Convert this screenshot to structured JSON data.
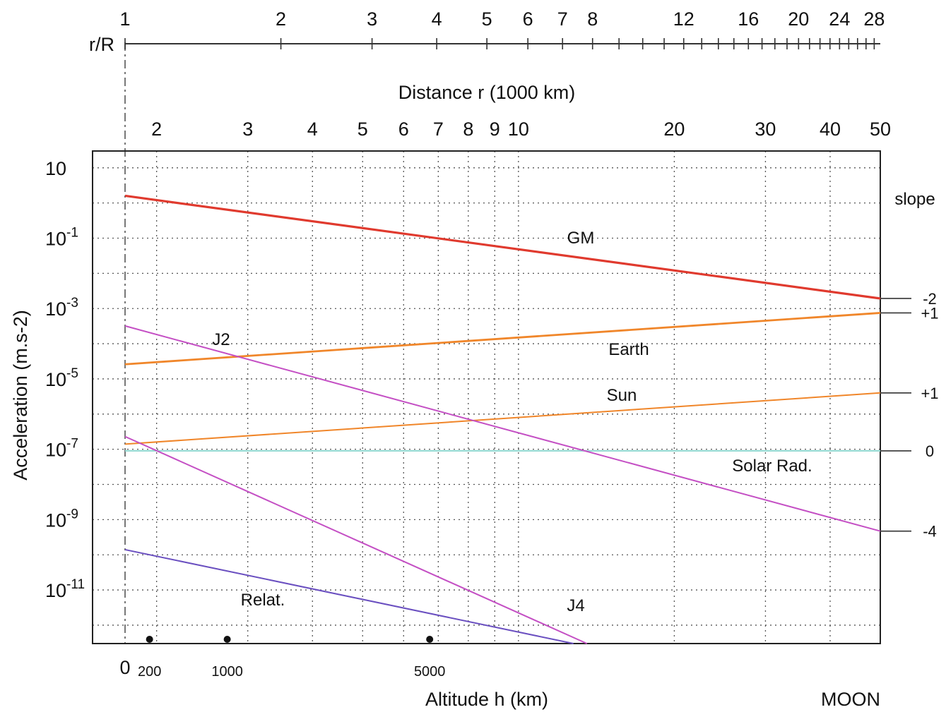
{
  "chart_data": {
    "type": "line",
    "title": "",
    "top_axis": {
      "label": "r/R",
      "ticks": [
        1,
        2,
        3,
        4,
        5,
        6,
        7,
        8,
        9,
        10,
        11,
        12,
        13,
        14,
        15,
        16,
        17,
        18,
        19,
        20,
        21,
        22,
        23,
        24,
        25,
        26,
        27,
        28,
        29
      ],
      "tick_labels": [
        "1",
        "2",
        "3",
        "4",
        "5",
        "6",
        "7",
        "8",
        "12",
        "16",
        "20",
        "24",
        "28"
      ],
      "tick_label_values": [
        1,
        2,
        3,
        4,
        5,
        6,
        7,
        8,
        12,
        16,
        20,
        24,
        28
      ]
    },
    "distance_axis": {
      "label": "Distance r (1000 km)",
      "tick_labels": [
        "2",
        "3",
        "4",
        "5",
        "6",
        "7",
        "8",
        "9",
        "10",
        "20",
        "30",
        "40",
        "50"
      ],
      "tick_values": [
        2,
        3,
        4,
        5,
        6,
        7,
        8,
        9,
        10,
        20,
        30,
        40,
        50
      ],
      "range": [
        1.738,
        50
      ],
      "scale": "log"
    },
    "y_axis": {
      "label": "Acceleration (m.s-2)",
      "scale": "log",
      "range": [
        3e-13,
        30
      ],
      "tick_values": [
        10,
        0.1,
        0.001,
        1e-05,
        1e-07,
        1e-09,
        1e-11
      ],
      "tick_labels": [
        {
          "base": "10",
          "exp": ""
        },
        {
          "base": "10",
          "exp": "-1"
        },
        {
          "base": "10",
          "exp": "-3"
        },
        {
          "base": "10",
          "exp": "-5"
        },
        {
          "base": "10",
          "exp": "-7"
        },
        {
          "base": "10",
          "exp": "-9"
        },
        {
          "base": "10",
          "exp": "-11"
        }
      ]
    },
    "bottom_axis": {
      "label": "Altitude h (km)",
      "tick_labels": [
        "0",
        "200",
        "1000",
        "5000"
      ],
      "tick_values": [
        0,
        200,
        1000,
        5000
      ],
      "right_label": "MOON"
    },
    "slope_header": "slope",
    "grid": true,
    "series": [
      {
        "name": "GM",
        "color": "#e03a2e",
        "x": [
          1.738,
          50
        ],
        "y": [
          1.6,
          0.00193
        ],
        "slope_label": "-2"
      },
      {
        "name": "Earth",
        "color": "#f0862a",
        "x": [
          1.738,
          50
        ],
        "y": [
          2.6e-05,
          0.00075
        ],
        "slope_label": "+1"
      },
      {
        "name": "Sun",
        "color": "#f0862a",
        "x": [
          1.738,
          50
        ],
        "y": [
          1.4e-07,
          4e-06
        ],
        "slope_label": "+1"
      },
      {
        "name": "Solar Rad.",
        "color": "#8fd8d0",
        "x": [
          1.738,
          50
        ],
        "y": [
          9e-08,
          9e-08
        ],
        "slope_label": "0"
      },
      {
        "name": "J2",
        "color": "#c44fc4",
        "x": [
          1.738,
          50
        ],
        "y": [
          0.00032,
          4.7e-10
        ],
        "slope_label": "-4"
      },
      {
        "name": "J4",
        "color": "#c44fc4",
        "x": [
          1.738,
          13.56
        ],
        "y": [
          2.3e-07,
          3e-13
        ]
      },
      {
        "name": "Relat.",
        "color": "#6a4fc0",
        "x": [
          1.738,
          12.77
        ],
        "y": [
          1.4e-10,
          3e-13
        ]
      }
    ],
    "altitude_markers_km": [
      200,
      1000,
      5000
    ]
  }
}
